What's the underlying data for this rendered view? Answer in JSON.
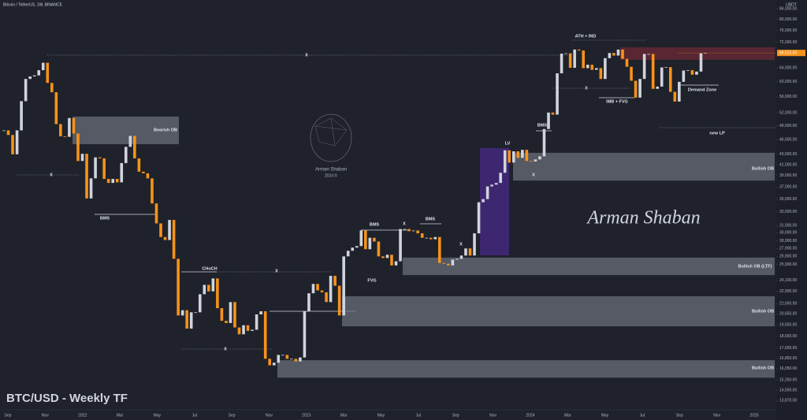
{
  "chart_data": {
    "type": "candlestick",
    "header": "Bitcoin / TetherUS, 1W, BINANCE",
    "currency": "USDT",
    "title": "BTC/USD - Weekly TF",
    "watermark": "Arman Shaban",
    "watermark_sub": "2024 ©",
    "signature": "Arman Shaban",
    "log_scale": true,
    "grid": false,
    "up_color": "#d1d4dc",
    "down_color": "#f7931a",
    "x_labels": [
      "Sep",
      "Nov",
      "2022",
      "Mar",
      "May",
      "Jul",
      "Sep",
      "Nov",
      "2023",
      "Mar",
      "May",
      "Jul",
      "Sep",
      "Nov",
      "2024",
      "Mar",
      "May",
      "Jul",
      "Sep",
      "Nov",
      "2025"
    ],
    "close": [
      48000,
      47000,
      43000,
      48000,
      54900,
      60800,
      61500,
      61800,
      63300,
      65500,
      59700,
      57200,
      49400,
      46700,
      46600,
      50800,
      47300,
      41700,
      43100,
      35100,
      38500,
      42400,
      42200,
      38400,
      37700,
      38400,
      37800,
      41300,
      44500,
      46800,
      42200,
      39700,
      39400,
      38500,
      34300,
      31300,
      29400,
      29000,
      31800,
      26600,
      20500,
      21000,
      19300,
      20800,
      20800,
      22600,
      23600,
      22900,
      24300,
      21200,
      20000,
      19800,
      21800,
      19400,
      18800,
      19600,
      19100,
      19200,
      20600,
      20900,
      16800,
      16300,
      16500,
      17100,
      17100,
      16800,
      16800,
      16600,
      16900,
      20900,
      22700,
      23700,
      23000,
      22800,
      21800,
      24600,
      23500,
      20500,
      26900,
      27600,
      28000,
      28200,
      30300,
      27800,
      29300,
      28800,
      26900,
      26700,
      27100,
      25800,
      26300,
      30500,
      30500,
      30200,
      30300,
      29900,
      29300,
      29300,
      29100,
      29400,
      26100,
      26000,
      25800,
      26500,
      26600,
      27000,
      27900,
      27000,
      29900,
      34500,
      35000,
      37100,
      37400,
      37700,
      39500,
      43800,
      41400,
      43600,
      42300,
      43900,
      41700,
      41600,
      42000,
      42600,
      48300,
      52100,
      51600,
      62400,
      68300,
      68400,
      64000,
      69600,
      69300,
      63900,
      64900,
      63400,
      63900,
      60800,
      66900,
      68500,
      67700,
      69600,
      66700,
      64300,
      60300,
      55800,
      60800,
      68200,
      68200,
      58100,
      58700,
      64100,
      64200,
      57300,
      54800,
      60000,
      63200,
      63300,
      62000,
      62900,
      68400,
      68522
    ],
    "last_price": {
      "value": 68522,
      "label": "68,522.00"
    },
    "ylim": [
      13290,
      87400
    ],
    "yticks": [
      {
        "value": 84000,
        "label": "84,000.00"
      },
      {
        "value": 80000,
        "label": "80,000.00"
      },
      {
        "value": 76000,
        "label": "76,000.00"
      },
      {
        "value": 72000,
        "label": "72,000.00"
      },
      {
        "value": 64000,
        "label": "64,000.00"
      },
      {
        "value": 60000,
        "label": "60,000.00"
      },
      {
        "value": 56000,
        "label": "56,000.00"
      },
      {
        "value": 52000,
        "label": "52,000.00"
      },
      {
        "value": 49000,
        "label": "49,000.00"
      },
      {
        "value": 46000,
        "label": "46,000.00"
      },
      {
        "value": 43000,
        "label": "43,000.00"
      },
      {
        "value": 41000,
        "label": "41,000.00"
      },
      {
        "value": 39000,
        "label": "39,000.00"
      },
      {
        "value": 37000,
        "label": "37,000.00"
      },
      {
        "value": 35000,
        "label": "35,000.00"
      },
      {
        "value": 33000,
        "label": "33,000.00"
      },
      {
        "value": 31000,
        "label": "31,000.00"
      },
      {
        "value": 30000,
        "label": "30,000.00"
      },
      {
        "value": 28900,
        "label": "28,900.00"
      },
      {
        "value": 27900,
        "label": "27,900.00"
      },
      {
        "value": 26900,
        "label": "26,900.00"
      },
      {
        "value": 25900,
        "label": "25,900.00"
      },
      {
        "value": 24100,
        "label": "24,100.00"
      },
      {
        "value": 22900,
        "label": "22,900.00"
      },
      {
        "value": 21650,
        "label": "21,650.00"
      },
      {
        "value": 20650,
        "label": "20,650.00"
      },
      {
        "value": 19650,
        "label": "19,650.00"
      },
      {
        "value": 18650,
        "label": "18,650.00"
      },
      {
        "value": 17650,
        "label": "17,650.00"
      },
      {
        "value": 16850,
        "label": "16,850.00"
      },
      {
        "value": 16050,
        "label": "16,050.00"
      },
      {
        "value": 15250,
        "label": "15,250.00"
      },
      {
        "value": 14550,
        "label": "14,550.00"
      },
      {
        "value": 13870,
        "label": "13,870.00"
      }
    ],
    "zones": [
      {
        "top": 51150,
        "bottom": 45050,
        "color": "#6a6d78"
      },
      {
        "top": 70300,
        "bottom": 66400,
        "color": "#6e2a35"
      },
      {
        "top": 44250,
        "bottom": 27030,
        "color": "#4a2a8a"
      },
      {
        "top": 43300,
        "bottom": 38100,
        "color": "#6a6d78"
      },
      {
        "top": 26750,
        "bottom": 24680,
        "color": "#6a6d78"
      },
      {
        "top": 22390,
        "bottom": 19500,
        "color": "#6a6d78"
      },
      {
        "top": 16690,
        "bottom": 15400,
        "color": "#6a6d78"
      }
    ],
    "annotations": [
      "Bearish OB",
      "BMS",
      "CHoCH",
      "BMS",
      "BMS",
      "FVG",
      "LV",
      "BMS",
      "ATH + IND",
      "IMB + FVG",
      "Demand Zone",
      "new LP",
      "Bullish OB",
      "Bullish OB (LTF)",
      "Bullish OB",
      "Bullish OB",
      "X",
      "X",
      "X",
      "X",
      "X",
      "X",
      "X",
      "X"
    ]
  }
}
